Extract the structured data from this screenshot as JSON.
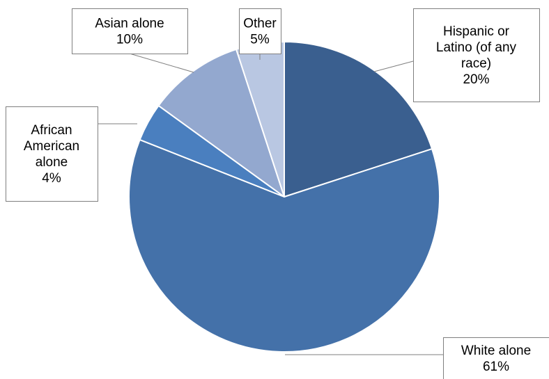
{
  "chart_data": {
    "type": "pie",
    "title": "",
    "start_angle_deg": 0,
    "direction": "clockwise",
    "slices": [
      {
        "label_lines": [
          "Hispanic or",
          "Latino (of any",
          "race)"
        ],
        "value": 20,
        "value_text": "20%",
        "color": "#3A5F8F"
      },
      {
        "label_lines": [
          "White alone"
        ],
        "value": 61,
        "value_text": "61%",
        "color": "#4471A9"
      },
      {
        "label_lines": [
          "African",
          "American",
          "alone"
        ],
        "value": 4,
        "value_text": "4%",
        "color": "#4A7FBF"
      },
      {
        "label_lines": [
          "Asian alone"
        ],
        "value": 10,
        "value_text": "10%",
        "color": "#93A8CF"
      },
      {
        "label_lines": [
          "Other"
        ],
        "value": 5,
        "value_text": "5%",
        "color": "#B9C7E2"
      }
    ]
  }
}
